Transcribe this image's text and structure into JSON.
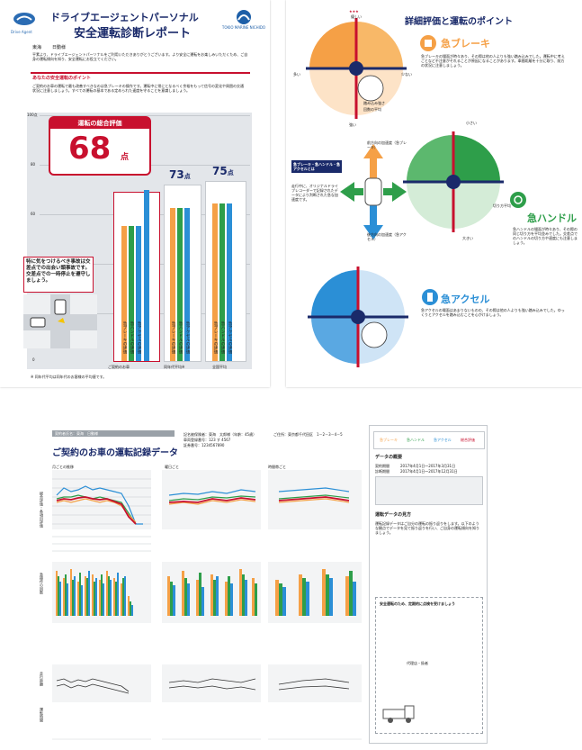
{
  "page1": {
    "org_logo_text": "Drive Agent",
    "title_line1": "ドライブエージェントパーソナル",
    "title_line2": "安全運転診断レポート",
    "brand": "TOKIO MARINE NICHIDO",
    "customer_label": "東海",
    "customer_name": "日動様",
    "intro": "平素より、ドライブエージェントパーソナルをご利用いただきありがとうございます。より安全に運転をお楽しみいただくため、ご自身の運転傾向を知り、安全運転にお役立てください。",
    "point_heading": "あなたの安全運転のポイント",
    "point_text": "ご契約のお車の運転で最も改善すべきなのは急ブレーキの操作です。運転中に常にとなるべく余裕をもって信号の変化や周囲の交通状況に注意しましょう。すべての運転の基本である定められた速度を守ることを意識しましょう。",
    "score_label": "運転の総合評価",
    "score_value": "68",
    "score_unit": "点",
    "same_age_score": "73",
    "national_score": "75",
    "points_unit": "点",
    "axis_ticks": [
      "100点",
      "80",
      "60",
      "40",
      "20",
      "0"
    ],
    "x_labels": [
      "ご契約のお車",
      "同年代平均※",
      "全国平均"
    ],
    "bar_labels": [
      "急ブレーキの評価",
      "急ハンドルの評価",
      "急アクセルの評価"
    ],
    "advice": "特に気をつけるべき事故は交差点での出会い頭事故です。交差点での一時停止を遵守しましょう。",
    "footnote": "※ 同年代平均は同年代のお客様の平均値です。"
  },
  "page2": {
    "title": "詳細評価と運転のポイント",
    "brake_title": "急ブレーキ",
    "brake_text": "急ブレーキの場面が時々あり、その際は他の人よりも強い踏み込みでした。運転中に考えごとなど不注意がそれることが原因になることがあります。車間距離を十分に取り、前方の状況に注意しましょう。",
    "handle_title": "急ハンドル",
    "handle_text": "急ハンドルの場面が時々あり、その際の同じ切り方を平均並みでした。交差点でのハンドルの切り方や速度にも注意しましょう。",
    "accel_title": "急アクセル",
    "accel_text": "急アクセルの場面はあまりないものの、その際は他の人よりも強い踏み込みでした。ゆっくりとアクセルを踏み込むことを心がけましょう。",
    "stars_good": "★★★",
    "good": "優しい",
    "many": "多い",
    "few": "少ない",
    "strong": "強い",
    "weak": "小さい",
    "big": "大きい",
    "frequency": "発生頻度",
    "intensity": "強さ",
    "national_avg": "全国平均",
    "your_car": "ご契約のお車",
    "legend_a": "踏み込み強さ",
    "legend_b": "回数の平均",
    "legend_c": "切り方平均",
    "side_title": "急ブレーキ・急ハンドル・急アクセルとは",
    "side_text": "走行中に、オリジナルドライブレコーダーで記録されたデータにより判断された急な加速度です。",
    "front_label": "前方向の加速度（急ブレーキ）",
    "rear_label": "後方向の加速度（急アクセル）",
    "lateral_label": "横方向の加速度（急ハンドル）"
  },
  "page3": {
    "contract_label": "契約者氏名：東海　日動様",
    "title": "ご契約のお車の運転記録データ",
    "record_info1": "記名被保険者：東海　太郎様（年齢：45歳）",
    "record_info2": "車両登録番号：123 す 4567",
    "record_info3": "証券番号：1234567890",
    "record_info4": "ご住所：東京都千代田区　1－2－3－4－5",
    "section_hour": "月ごとの推移",
    "section_week": "曜日ごと",
    "section_time": "時間帯ごと",
    "months": [
      "1",
      "2",
      "3",
      "4",
      "5",
      "6",
      "7",
      "8",
      "9",
      "10",
      "11",
      "12",
      "13",
      "14"
    ],
    "weekdays": [
      "月",
      "火",
      "水",
      "木",
      "金",
      "土",
      "日"
    ],
    "times": [
      "朝",
      "昼",
      "夕",
      "夜"
    ],
    "legend": [
      "急ブレーキ",
      "急ハンドル",
      "急アクセル",
      "総合評価"
    ],
    "data_summary_title": "データの概要",
    "period_label1": "契約期間",
    "period_value1": "2017年4月1日～2017年3月31日",
    "period_label2": "診断期間",
    "period_value2": "2017年4月1日～2017年12月31日",
    "guide_title": "運転データの見方",
    "guide_text": "運転記録データはご自分の運転の振り返りをします。以下のような観点でデータを見て振り返りを行い、ご自身の運転傾向を知りましょう。",
    "tips_title": "安全運転のため、定期的に点検を受けましょう",
    "dealer_label": "代理店・扱者",
    "y_label_scores": "総合評価・各項目評価",
    "y_label_count": "急操作の回数",
    "y_label_distance": "走行距離",
    "y_label_time": "運転時間"
  },
  "colors": {
    "navy": "#1a2a6a",
    "red": "#c8102e",
    "orange": "#f5a046",
    "green": "#2e9e4a",
    "blue": "#2b8fd6",
    "grey": "#d9dce0"
  }
}
